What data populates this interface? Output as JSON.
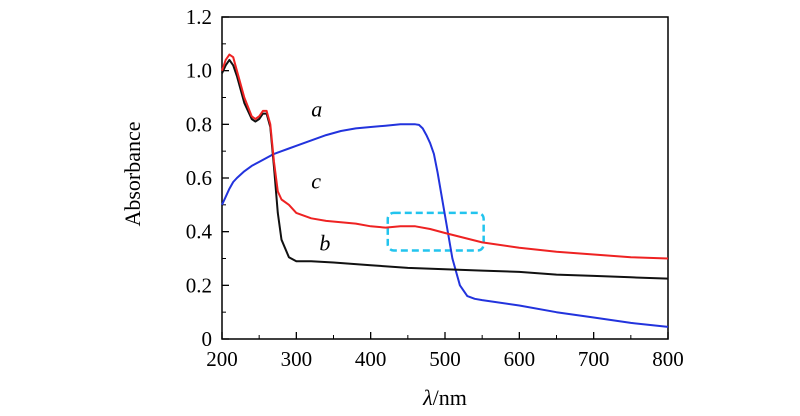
{
  "chart_data": {
    "type": "line",
    "title": "",
    "xlabel_italic": "λ",
    "xlabel_rest": "/nm",
    "ylabel": "Absorbance",
    "xlim": [
      200,
      800
    ],
    "ylim": [
      0,
      1.2
    ],
    "xticks": [
      200,
      300,
      400,
      500,
      600,
      700,
      800
    ],
    "xtick_labels": [
      "200",
      "300",
      "400",
      "500",
      "600",
      "700",
      "800"
    ],
    "yticks": [
      0,
      0.2,
      0.4,
      0.6,
      0.8,
      1.0,
      1.2
    ],
    "ytick_labels": [
      "0",
      "0.2",
      "0.4",
      "0.6",
      "0.8",
      "1.0",
      "1.2"
    ],
    "grid": false,
    "series": [
      {
        "name": "a",
        "color": "#2233dd",
        "x": [
          200,
          205,
          210,
          215,
          220,
          230,
          240,
          250,
          260,
          270,
          280,
          290,
          300,
          320,
          340,
          360,
          380,
          400,
          420,
          440,
          460,
          465,
          470,
          475,
          480,
          485,
          490,
          495,
          500,
          505,
          510,
          520,
          530,
          540,
          550,
          600,
          650,
          700,
          750,
          800
        ],
        "y": [
          0.5,
          0.53,
          0.56,
          0.585,
          0.6,
          0.625,
          0.645,
          0.66,
          0.675,
          0.69,
          0.7,
          0.71,
          0.72,
          0.74,
          0.76,
          0.775,
          0.785,
          0.79,
          0.795,
          0.8,
          0.8,
          0.798,
          0.785,
          0.76,
          0.73,
          0.69,
          0.62,
          0.54,
          0.46,
          0.38,
          0.3,
          0.2,
          0.16,
          0.15,
          0.145,
          0.125,
          0.1,
          0.08,
          0.06,
          0.045
        ]
      },
      {
        "name": "b",
        "color": "#111111",
        "x": [
          200,
          205,
          210,
          215,
          220,
          230,
          240,
          245,
          250,
          255,
          260,
          265,
          270,
          275,
          280,
          290,
          300,
          320,
          350,
          400,
          450,
          500,
          550,
          600,
          650,
          700,
          750,
          800
        ],
        "y": [
          0.99,
          1.02,
          1.04,
          1.02,
          0.98,
          0.88,
          0.82,
          0.81,
          0.82,
          0.84,
          0.84,
          0.79,
          0.64,
          0.47,
          0.37,
          0.305,
          0.29,
          0.29,
          0.285,
          0.275,
          0.265,
          0.26,
          0.255,
          0.25,
          0.24,
          0.235,
          0.23,
          0.225
        ]
      },
      {
        "name": "c",
        "color": "#ee2222",
        "x": [
          200,
          205,
          210,
          215,
          220,
          230,
          240,
          245,
          250,
          255,
          260,
          265,
          270,
          275,
          280,
          290,
          300,
          320,
          340,
          360,
          380,
          400,
          420,
          440,
          460,
          480,
          500,
          550,
          600,
          650,
          700,
          750,
          800
        ],
        "y": [
          1.0,
          1.04,
          1.06,
          1.05,
          1.0,
          0.9,
          0.83,
          0.82,
          0.83,
          0.85,
          0.85,
          0.8,
          0.66,
          0.55,
          0.52,
          0.5,
          0.47,
          0.45,
          0.44,
          0.435,
          0.43,
          0.42,
          0.415,
          0.42,
          0.42,
          0.41,
          0.395,
          0.36,
          0.34,
          0.325,
          0.315,
          0.305,
          0.3
        ]
      }
    ],
    "annotations": [
      {
        "text": "a",
        "x": 320,
        "y": 0.83
      },
      {
        "text": "c",
        "x": 320,
        "y": 0.56
      },
      {
        "text": "b",
        "x": 331,
        "y": 0.33
      }
    ],
    "highlight_box": {
      "color": "#22c4ee",
      "x_range": [
        423,
        552
      ],
      "y_range": [
        0.33,
        0.47
      ]
    }
  }
}
